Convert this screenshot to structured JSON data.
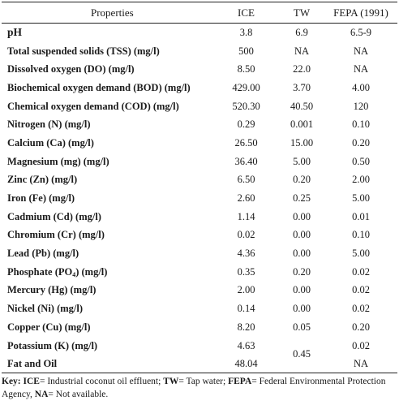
{
  "table": {
    "headers": {
      "properties": "Properties",
      "ice": "ICE",
      "tw": "TW",
      "fepa": "FEPA (1991)"
    },
    "rows": [
      {
        "property": "pH",
        "ice": "3.8",
        "tw": "6.9",
        "fepa": "6.5-9"
      },
      {
        "property": "Total suspended solids (TSS) (mg/l)",
        "ice": "500",
        "tw": "NA",
        "fepa": "NA"
      },
      {
        "property": "Dissolved oxygen (DO) (mg/l)",
        "ice": "8.50",
        "tw": "22.0",
        "fepa": "NA"
      },
      {
        "property": "Biochemical oxygen demand (BOD) (mg/l)",
        "ice": "429.00",
        "tw": "3.70",
        "fepa": "4.00"
      },
      {
        "property": "Chemical oxygen demand (COD) (mg/l)",
        "ice": "520.30",
        "tw": "40.50",
        "fepa": "120"
      },
      {
        "property": "Nitrogen (N) (mg/l)",
        "ice": "0.29",
        "tw": "0.001",
        "fepa": "0.10"
      },
      {
        "property": "Calcium (Ca) (mg/l)",
        "ice": "26.50",
        "tw": "15.00",
        "fepa": "0.20"
      },
      {
        "property": "Magnesium (mg) (mg/l)",
        "ice": "36.40",
        "tw": "5.00",
        "fepa": "0.50"
      },
      {
        "property": "Zinc (Zn) (mg/l)",
        "ice": "6.50",
        "tw": "0.20",
        "fepa": "2.00"
      },
      {
        "property": "Iron (Fe) (mg/l)",
        "ice": "2.60",
        "tw": "0.25",
        "fepa": "5.00"
      },
      {
        "property": "Cadmium (Cd) (mg/l)",
        "ice": "1.14",
        "tw": "0.00",
        "fepa": "0.01"
      },
      {
        "property": "Chromium (Cr) (mg/l)",
        "ice": "0.02",
        "tw": "0.00",
        "fepa": "0.10"
      },
      {
        "property": "Lead (Pb) (mg/l)",
        "ice": "4.36",
        "tw": "0.00",
        "fepa": "5.00"
      },
      {
        "property_prefix": "Phosphate (PO",
        "property_sub": "4",
        "property_suffix": ") (mg/l)",
        "ice": "0.35",
        "tw": "0.20",
        "fepa": "0.02"
      },
      {
        "property": "Mercury (Hg) (mg/l)",
        "ice": "2.00",
        "tw": "0.00",
        "fepa": "0.02"
      },
      {
        "property": "Nickel (Ni) (mg/l)",
        "ice": "0.14",
        "tw": "0.00",
        "fepa": "0.02"
      },
      {
        "property": "Copper (Cu) (mg/l)",
        "ice": "8.20",
        "tw": "0.05",
        "fepa": "0.20"
      }
    ],
    "last_rows": {
      "potassium": {
        "property": "Potassium (K) (mg/l)",
        "ice": "4.63",
        "fepa": "0.02"
      },
      "fat_oil": {
        "property": "Fat and Oil",
        "ice": "48.04",
        "fepa": "NA"
      },
      "shared_tw": "0.45"
    }
  },
  "note": {
    "key_label": "Key:",
    "ice_abbr": "ICE",
    "ice_text": "= Industrial coconut oil effluent; ",
    "tw_abbr": "TW",
    "tw_text": "= Tap water; ",
    "fepa_abbr": "FEPA",
    "fepa_text": "= Federal Environmental Protection Agency, ",
    "na_abbr": "NA",
    "na_text": "= Not available."
  }
}
